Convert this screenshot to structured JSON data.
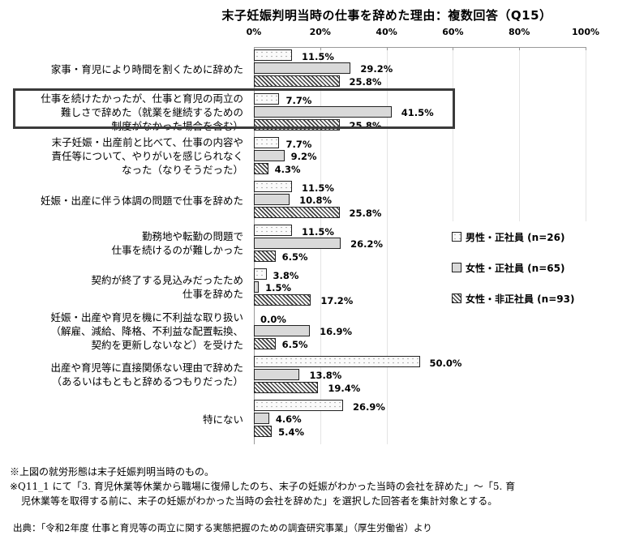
{
  "title": "末子妊娠判明当時の仕事を辞めた理由：複数回答（Q15）",
  "axis": {
    "ticks": [
      "0%",
      "20%",
      "40%",
      "60%",
      "80%",
      "100%"
    ]
  },
  "legend": [
    {
      "key": "male_regular",
      "label": "男性・正社員 (n=26)"
    },
    {
      "key": "female_regular",
      "label": "女性・正社員 (n=65)"
    },
    {
      "key": "female_nonregular",
      "label": "女性・非正社員 (n=93)"
    }
  ],
  "categories": [
    {
      "lines": [
        "家事・育児により時間を割くために辞めた"
      ],
      "male": "11.5%",
      "female_reg": "29.2%",
      "female_non": "25.8%"
    },
    {
      "lines": [
        "仕事を続けたかったが、仕事と育児の両立の",
        "難しさで辞めた（就業を継続するための",
        "制度がなかった場合を含む）"
      ],
      "male": "7.7%",
      "female_reg": "41.5%",
      "female_non": "25.8%"
    },
    {
      "lines": [
        "末子妊娠・出産前と比べて、仕事の内容や",
        "責任等について、やりがいを感じられなく",
        "なった（なりそうだった）"
      ],
      "male": "7.7%",
      "female_reg": "9.2%",
      "female_non": "4.3%"
    },
    {
      "lines": [
        "妊娠・出産に伴う体調の問題で仕事を辞めた"
      ],
      "male": "11.5%",
      "female_reg": "10.8%",
      "female_non": "25.8%"
    },
    {
      "lines": [
        "勤務地や転勤の問題で",
        "仕事を続けるのが難しかった"
      ],
      "male": "11.5%",
      "female_reg": "26.2%",
      "female_non": "6.5%"
    },
    {
      "lines": [
        "契約が終了する見込みだったため",
        "仕事を辞めた"
      ],
      "male": "3.8%",
      "female_reg": "1.5%",
      "female_non": "17.2%"
    },
    {
      "lines": [
        "妊娠・出産や育児を機に不利益な取り扱い",
        "（解雇、減給、降格、不利益な配置転換、",
        "契約を更新しないなど）を受けた"
      ],
      "male": "0.0%",
      "female_reg": "16.9%",
      "female_non": "6.5%"
    },
    {
      "lines": [
        "出産や育児等に直接関係ない理由で辞めた",
        "（あるいはもともと辞めるつもりだった）"
      ],
      "male": "50.0%",
      "female_reg": "13.8%",
      "female_non": "19.4%"
    },
    {
      "lines": [
        "特にない"
      ],
      "male": "26.9%",
      "female_reg": "4.6%",
      "female_non": "5.4%"
    }
  ],
  "notes": [
    "※上図の就労形態は末子妊娠判明当時のもの。",
    "※Q11_1 にて「3. 育児休業等休業から職場に復帰したのち、末子の妊娠がわかった当時の会社を辞めた」～「5. 育",
    "児休業等を取得する前に、末子の妊娠がわかった当時の会社を辞めた」を選択した回答者を集計対象とする。"
  ],
  "source": "出典：「令和2年度 仕事と育児等の両立に関する実態把握のための調査研究事業」（厚生労働省）より",
  "chart_data": {
    "type": "bar",
    "orientation": "horizontal",
    "title": "末子妊娠判明当時の仕事を辞めた理由：複数回答（Q15）",
    "xlabel": "",
    "ylabel": "",
    "xlim": [
      0,
      100
    ],
    "x_ticks": [
      "0%",
      "20%",
      "40%",
      "60%",
      "80%",
      "100%"
    ],
    "grid": true,
    "legend_position": "right",
    "categories": [
      "家事・育児により時間を割くために辞めた",
      "仕事を続けたかったが、仕事と育児の両立の難しさで辞めた（就業を継続するための制度がなかった場合を含む）",
      "末子妊娠・出産前と比べて、仕事の内容や責任等について、やりがいを感じられなくなった（なりそうだった）",
      "妊娠・出産に伴う体調の問題で仕事を辞めた",
      "勤務地や転勤の問題で仕事を続けるのが難しかった",
      "契約が終了する見込みだったため仕事を辞めた",
      "妊娠・出産や育児を機に不利益な取り扱い（解雇、減給、降格、不利益な配置転換、契約を更新しないなど）を受けた",
      "出産や育児等に直接関係ない理由で辞めた（あるいはもともと辞めるつもりだった）",
      "特にない"
    ],
    "series": [
      {
        "name": "男性・正社員 (n=26)",
        "pattern": "dotted",
        "values": [
          11.5,
          7.7,
          7.7,
          11.5,
          11.5,
          3.8,
          0.0,
          50.0,
          26.9
        ]
      },
      {
        "name": "女性・正社員 (n=65)",
        "pattern": "light-gray",
        "values": [
          29.2,
          41.5,
          9.2,
          10.8,
          26.2,
          1.5,
          16.9,
          13.8,
          4.6
        ]
      },
      {
        "name": "女性・非正社員 (n=93)",
        "pattern": "diagonal-hatch",
        "values": [
          25.8,
          25.8,
          4.3,
          25.8,
          6.5,
          17.2,
          6.5,
          19.4,
          5.4
        ]
      }
    ],
    "annotations": [
      "2番目の項目（仕事と育児の両立の難しさ）が太枠で強調されている"
    ]
  }
}
